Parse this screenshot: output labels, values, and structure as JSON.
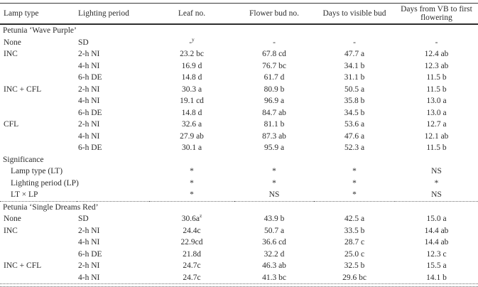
{
  "colors": {
    "background": "#ffffff",
    "text": "#2b2b2b",
    "solid_rule": "#3a3a3a",
    "dotted_rule": "#6b6b6b"
  },
  "table": {
    "columns": [
      {
        "id": "lamp-type",
        "label": "Lamp type",
        "align": "left"
      },
      {
        "id": "lighting-period",
        "label": "Lighting period",
        "align": "left"
      },
      {
        "id": "leaf-no",
        "label": "Leaf no.",
        "align": "center"
      },
      {
        "id": "flower-bud-no",
        "label": "Flower bud no.",
        "align": "center"
      },
      {
        "id": "days-to-visible-bud",
        "label": "Days to visible bud",
        "align": "center"
      },
      {
        "id": "days-vb-to-first-flowering",
        "label": "Days from VB to first flowering",
        "align": "center"
      }
    ],
    "rows": [
      {
        "kind": "section",
        "label": "Petunia ‘Wave Purple’"
      },
      {
        "kind": "data",
        "lamp_type": "None",
        "lighting_period": "SD",
        "values": [
          "-^y",
          "-",
          "-",
          "-"
        ]
      },
      {
        "kind": "data",
        "lamp_type": "INC",
        "lighting_period": "2-h NI",
        "values": [
          "23.2 bc",
          "67.8 cd",
          "47.7 a",
          "12.4 ab"
        ]
      },
      {
        "kind": "data",
        "lamp_type": "",
        "lighting_period": "4-h NI",
        "values": [
          "16.9 d",
          "76.7 bc",
          "34.1 b",
          "12.3 ab"
        ]
      },
      {
        "kind": "data",
        "lamp_type": "",
        "lighting_period": "6-h DE",
        "values": [
          "14.8 d",
          "61.7 d",
          "31.1 b",
          "11.5 b"
        ]
      },
      {
        "kind": "data",
        "lamp_type": "INC + CFL",
        "lighting_period": "2-h NI",
        "values": [
          "30.3 a",
          "80.9 b",
          "50.5 a",
          "11.5 b"
        ]
      },
      {
        "kind": "data",
        "lamp_type": "",
        "lighting_period": "4-h NI",
        "values": [
          "19.1 cd",
          "96.9 a",
          "35.8 b",
          "13.0 a"
        ]
      },
      {
        "kind": "data",
        "lamp_type": "",
        "lighting_period": "6-h DE",
        "values": [
          "14.8 d",
          "84.7 ab",
          "34.5 b",
          "13.0 a"
        ]
      },
      {
        "kind": "data",
        "lamp_type": "CFL",
        "lighting_period": "2-h NI",
        "values": [
          "32.6 a",
          "81.1 b",
          "53.6 a",
          "12.7 a"
        ]
      },
      {
        "kind": "data",
        "lamp_type": "",
        "lighting_period": "4-h NI",
        "values": [
          "27.9 ab",
          "87.3 ab",
          "47.6 a",
          "12.1 ab"
        ]
      },
      {
        "kind": "data",
        "lamp_type": "",
        "lighting_period": "6-h DE",
        "values": [
          "30.1 a",
          "95.9 a",
          "52.3 a",
          "11.5 b"
        ]
      },
      {
        "kind": "group",
        "label": "Significance"
      },
      {
        "kind": "sub",
        "label": "Lamp type (LT)",
        "values": [
          "*",
          "*",
          "*",
          "NS"
        ]
      },
      {
        "kind": "sub",
        "label": "Lighting period (LP)",
        "values": [
          "*",
          "*",
          "*",
          "*"
        ]
      },
      {
        "kind": "sub",
        "label": "LT × LP",
        "values": [
          "*",
          "NS",
          "*",
          "NS"
        ]
      },
      {
        "kind": "section",
        "label": "Petunia ‘Single Dreams Red’",
        "divider_above": true
      },
      {
        "kind": "data",
        "lamp_type": "None",
        "lighting_period": "SD",
        "values": [
          "30.6a^z",
          "43.9 b",
          "42.5 a",
          "15.0 a"
        ]
      },
      {
        "kind": "data",
        "lamp_type": "INC",
        "lighting_period": "2-h NI",
        "values": [
          "24.4c",
          "50.7 a",
          "33.5 b",
          "14.4 ab"
        ]
      },
      {
        "kind": "data",
        "lamp_type": "",
        "lighting_period": "4-h NI",
        "values": [
          "22.9cd",
          "36.6 cd",
          "28.7 c",
          "14.4 ab"
        ]
      },
      {
        "kind": "data",
        "lamp_type": "",
        "lighting_period": "6-h DE",
        "values": [
          "21.8d",
          "32.2 d",
          "25.0 c",
          "12.3 c"
        ]
      },
      {
        "kind": "data",
        "lamp_type": "INC + CFL",
        "lighting_period": "2-h NI",
        "values": [
          "24.7c",
          "46.3 ab",
          "32.5 b",
          "15.5 a"
        ]
      },
      {
        "kind": "data",
        "lamp_type": "",
        "lighting_period": "4-h NI",
        "values": [
          "24.7c",
          "41.3 bc",
          "29.6 bc",
          "14.1 b"
        ]
      }
    ]
  }
}
